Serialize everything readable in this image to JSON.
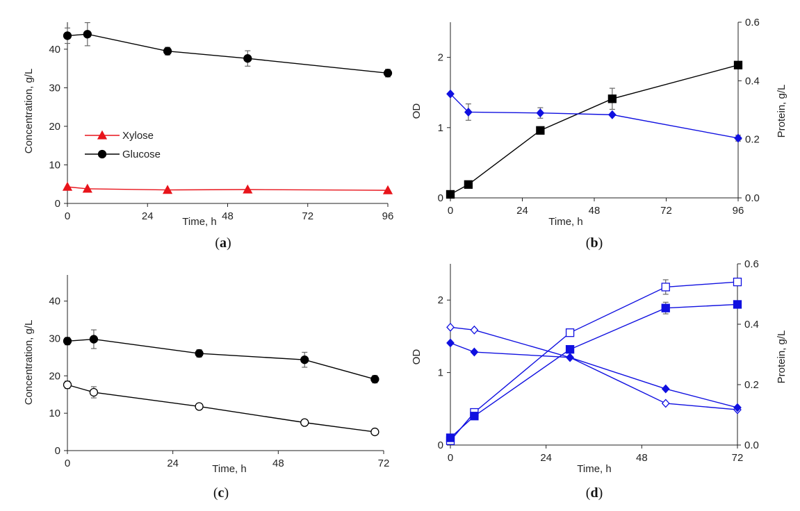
{
  "chart_data": [
    {
      "id": "a",
      "type": "line",
      "panel_label": "a",
      "xlabel": "Time, h",
      "ylabel": "Concentration, g/L",
      "xlim": [
        0,
        96
      ],
      "ylim": [
        0,
        47
      ],
      "xticks": [
        0,
        24,
        48,
        72,
        96
      ],
      "yticks": [
        0,
        10,
        20,
        30,
        40
      ],
      "legend": {
        "position": "left-middle",
        "entries": [
          "Xylose",
          "Glucose"
        ]
      },
      "series": [
        {
          "name": "Xylose",
          "color": "#e8141b",
          "marker": "triangle",
          "fill": "solid",
          "x": [
            0,
            6,
            30,
            54,
            96
          ],
          "y": [
            4.3,
            3.8,
            3.5,
            3.6,
            3.4
          ],
          "err": [
            0,
            0,
            0,
            0,
            0
          ]
        },
        {
          "name": "Glucose",
          "color": "#000000",
          "marker": "circle",
          "fill": "solid",
          "x": [
            0,
            6,
            30,
            54,
            96
          ],
          "y": [
            43.5,
            43.9,
            39.5,
            37.6,
            33.8
          ],
          "err": [
            2.0,
            3.0,
            1.0,
            2.0,
            1.0
          ]
        }
      ]
    },
    {
      "id": "b",
      "type": "line",
      "panel_label": "b",
      "xlabel": "Time, h",
      "ylabel": "OD",
      "y2label": "Protein, g/L",
      "xlim": [
        0,
        96
      ],
      "ylim": [
        0,
        2.5
      ],
      "y2lim": [
        0,
        0.6
      ],
      "xticks": [
        0,
        24,
        48,
        72,
        96
      ],
      "yticks": [
        0,
        1,
        2
      ],
      "y2ticks": [
        "0.0",
        "0.2",
        "0.4",
        "0.6"
      ],
      "series": [
        {
          "name": "OD",
          "axis": "left",
          "color": "#000000",
          "marker": "square",
          "fill": "solid",
          "x": [
            0,
            6,
            30,
            54,
            96
          ],
          "y": [
            0.05,
            0.19,
            0.96,
            1.41,
            1.89
          ],
          "err": [
            0,
            0,
            0,
            0.15,
            0
          ]
        },
        {
          "name": "Protein",
          "axis": "right",
          "color": "#1010e0",
          "marker": "diamond",
          "fill": "solid",
          "x": [
            0,
            6,
            30,
            54,
            96
          ],
          "y": [
            0.355,
            0.293,
            0.29,
            0.284,
            0.204
          ],
          "err": [
            0,
            0.028,
            0.018,
            0,
            0.01
          ]
        }
      ]
    },
    {
      "id": "c",
      "type": "line",
      "panel_label": "c",
      "xlabel": "Time, h",
      "ylabel": "Concentration, g/L",
      "xlim": [
        0,
        72
      ],
      "ylim": [
        0,
        47
      ],
      "xticks": [
        0,
        24,
        48,
        72
      ],
      "yticks": [
        0,
        10,
        20,
        30,
        40
      ],
      "series": [
        {
          "name": "Filled circles",
          "color": "#000000",
          "marker": "circle",
          "fill": "solid",
          "x": [
            0,
            6,
            30,
            54,
            70
          ],
          "y": [
            29.3,
            29.8,
            26.0,
            24.3,
            19.1
          ],
          "err": [
            1.0,
            2.5,
            1.0,
            2.0,
            1.0
          ]
        },
        {
          "name": "Open circles",
          "color": "#000000",
          "marker": "circle",
          "fill": "open",
          "x": [
            0,
            6,
            30,
            54,
            70
          ],
          "y": [
            17.6,
            15.6,
            11.8,
            7.5,
            5.0
          ],
          "err": [
            1.0,
            1.5,
            0.8,
            0,
            0
          ]
        }
      ]
    },
    {
      "id": "d",
      "type": "line",
      "panel_label": "d",
      "xlabel": "Time, h",
      "ylabel": "OD",
      "y2label": "Protein, g/L",
      "xlim": [
        0,
        72
      ],
      "ylim": [
        0,
        2.5
      ],
      "y2lim": [
        0,
        0.6
      ],
      "xticks": [
        0,
        24,
        48,
        72
      ],
      "yticks": [
        0,
        1,
        2
      ],
      "y2ticks": [
        "0.0",
        "0.2",
        "0.4",
        "0.6"
      ],
      "series": [
        {
          "name": "OD (open squares)",
          "axis": "left",
          "color": "#1010e0",
          "marker": "square",
          "fill": "open",
          "x": [
            0,
            6,
            30,
            54,
            72
          ],
          "y": [
            0.06,
            0.45,
            1.55,
            2.18,
            2.25
          ],
          "err": [
            0,
            0,
            0,
            0.1,
            0
          ]
        },
        {
          "name": "OD (filled squares)",
          "axis": "left",
          "color": "#1010e0",
          "marker": "square",
          "fill": "solid",
          "x": [
            0,
            6,
            30,
            54,
            72
          ],
          "y": [
            0.1,
            0.4,
            1.32,
            1.89,
            1.94
          ],
          "err": [
            0,
            0,
            0,
            0.08,
            0
          ]
        },
        {
          "name": "Protein (open diamonds)",
          "axis": "right",
          "color": "#1010e0",
          "marker": "diamond",
          "fill": "open",
          "x": [
            0,
            6,
            30,
            54,
            72
          ],
          "y": [
            0.39,
            0.381,
            0.29,
            0.138,
            0.117
          ],
          "err": [
            0,
            0,
            0,
            0,
            0
          ]
        },
        {
          "name": "Protein (filled diamonds)",
          "axis": "right",
          "color": "#1010e0",
          "marker": "diamond",
          "fill": "solid",
          "x": [
            0,
            6,
            30,
            54,
            72
          ],
          "y": [
            0.338,
            0.308,
            0.29,
            0.186,
            0.124
          ],
          "err": [
            0,
            0,
            0,
            0,
            0
          ]
        }
      ]
    }
  ]
}
